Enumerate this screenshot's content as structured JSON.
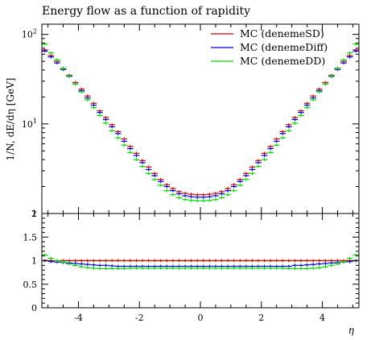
{
  "chart_data": [
    {
      "type": "line",
      "title": "Energy flow as a function of rapidity",
      "ylabel": "1/N, dE/dη [GeV]",
      "xlabel": "",
      "ylog": true,
      "xlim": [
        -5.2,
        5.2
      ],
      "ylim": [
        1,
        130
      ],
      "x_ticks": [
        "-4",
        "-2",
        "0",
        "2",
        "4"
      ],
      "y_ticks": [
        {
          "value": 1,
          "base": "1",
          "exp": ""
        },
        {
          "value": 10,
          "base": "10",
          "exp": "1"
        },
        {
          "value": 100,
          "base": "10",
          "exp": "2"
        }
      ],
      "legend_position": "top-right",
      "x": [
        -5.1,
        -4.9,
        -4.7,
        -4.5,
        -4.3,
        -4.1,
        -3.9,
        -3.7,
        -3.5,
        -3.3,
        -3.1,
        -2.9,
        -2.7,
        -2.5,
        -2.3,
        -2.1,
        -1.9,
        -1.7,
        -1.5,
        -1.3,
        -1.1,
        -0.9,
        -0.7,
        -0.5,
        -0.3,
        -0.1,
        0.1,
        0.3,
        0.5,
        0.7,
        0.9,
        1.1,
        1.3,
        1.5,
        1.7,
        1.9,
        2.1,
        2.3,
        2.5,
        2.7,
        2.9,
        3.1,
        3.3,
        3.5,
        3.7,
        3.9,
        4.1,
        4.3,
        4.5,
        4.7,
        4.9,
        5.1
      ],
      "series": [
        {
          "name": "MC (denemeSD)",
          "color": "#cc0000",
          "values": [
            67,
            58,
            50,
            42,
            35,
            29,
            24.5,
            20.5,
            17,
            14,
            11.8,
            9.8,
            8.2,
            6.8,
            5.6,
            4.7,
            3.9,
            3.3,
            2.8,
            2.4,
            2.1,
            1.9,
            1.75,
            1.68,
            1.64,
            1.62,
            1.62,
            1.64,
            1.68,
            1.75,
            1.9,
            2.1,
            2.4,
            2.8,
            3.3,
            3.9,
            4.7,
            5.6,
            6.8,
            8.2,
            9.8,
            11.8,
            14,
            17,
            20.5,
            24.5,
            29,
            35,
            42,
            50,
            58,
            67
          ]
        },
        {
          "name": "MC (denemeDiff)",
          "color": "#0000dd",
          "values": [
            65,
            56,
            48,
            40.5,
            34,
            28,
            23.5,
            19.5,
            16.2,
            13.4,
            11.2,
            9.3,
            7.8,
            6.4,
            5.3,
            4.45,
            3.7,
            3.1,
            2.65,
            2.28,
            2.0,
            1.8,
            1.66,
            1.58,
            1.54,
            1.52,
            1.52,
            1.54,
            1.58,
            1.66,
            1.8,
            2.0,
            2.28,
            2.65,
            3.1,
            3.7,
            4.45,
            5.3,
            6.4,
            7.8,
            9.3,
            11.2,
            13.4,
            16.2,
            19.5,
            23.5,
            28,
            34,
            40.5,
            48,
            56,
            65
          ]
        },
        {
          "name": "MC (denemeDD)",
          "color": "#00dd00",
          "values": [
            78,
            62,
            52,
            42,
            34.5,
            28,
            22.8,
            18.6,
            15.2,
            12.4,
            10.2,
            8.4,
            7.0,
            5.8,
            4.8,
            4.0,
            3.35,
            2.8,
            2.4,
            2.07,
            1.8,
            1.62,
            1.5,
            1.43,
            1.4,
            1.39,
            1.39,
            1.4,
            1.43,
            1.5,
            1.62,
            1.8,
            2.07,
            2.4,
            2.8,
            3.35,
            4.0,
            4.8,
            5.8,
            7.0,
            8.4,
            10.2,
            12.4,
            15.2,
            18.6,
            22.8,
            28,
            34.5,
            42,
            52,
            62,
            78
          ]
        }
      ]
    },
    {
      "type": "line",
      "title": "",
      "xlabel": "η",
      "ylabel": "",
      "ylog": false,
      "xlim": [
        -5.2,
        5.2
      ],
      "ylim": [
        0,
        2
      ],
      "y_ticks": [
        "0",
        "0.5",
        "1",
        "1.5",
        "2"
      ],
      "x": [
        -5.1,
        -4.9,
        -4.7,
        -4.5,
        -4.3,
        -4.1,
        -3.9,
        -3.7,
        -3.5,
        -3.3,
        -3.1,
        -2.9,
        -2.7,
        -2.5,
        -2.3,
        -2.1,
        -1.9,
        -1.7,
        -1.5,
        -1.3,
        -1.1,
        -0.9,
        -0.7,
        -0.5,
        -0.3,
        -0.1,
        0.1,
        0.3,
        0.5,
        0.7,
        0.9,
        1.1,
        1.3,
        1.5,
        1.7,
        1.9,
        2.1,
        2.3,
        2.5,
        2.7,
        2.9,
        3.1,
        3.3,
        3.5,
        3.7,
        3.9,
        4.1,
        4.3,
        4.5,
        4.7,
        4.9,
        5.1
      ],
      "series": [
        {
          "name": "MC (denemeSD)",
          "color": "#cc0000",
          "values": [
            1,
            1,
            1,
            1,
            1,
            1,
            1,
            1,
            1,
            1,
            1,
            1,
            1,
            1,
            1,
            1,
            1,
            1,
            1,
            1,
            1,
            1,
            1,
            1,
            1,
            1,
            1,
            1,
            1,
            1,
            1,
            1,
            1,
            1,
            1,
            1,
            1,
            1,
            1,
            1,
            1,
            1,
            1,
            1,
            1,
            1,
            1,
            1,
            1,
            1,
            1,
            1
          ]
        },
        {
          "name": "MC (denemeDiff)",
          "color": "#0000dd",
          "values": [
            1.0,
            0.98,
            0.97,
            0.96,
            0.95,
            0.94,
            0.93,
            0.92,
            0.91,
            0.9,
            0.9,
            0.89,
            0.88,
            0.88,
            0.88,
            0.88,
            0.88,
            0.88,
            0.88,
            0.88,
            0.88,
            0.88,
            0.88,
            0.88,
            0.88,
            0.88,
            0.88,
            0.88,
            0.88,
            0.88,
            0.88,
            0.88,
            0.88,
            0.88,
            0.88,
            0.88,
            0.88,
            0.88,
            0.88,
            0.88,
            0.88,
            0.9,
            0.9,
            0.91,
            0.92,
            0.93,
            0.94,
            0.95,
            0.96,
            0.97,
            0.98,
            1.0
          ]
        },
        {
          "name": "MC (denemeDD)",
          "color": "#00dd00",
          "values": [
            1.12,
            1.05,
            1.0,
            0.97,
            0.93,
            0.9,
            0.87,
            0.85,
            0.84,
            0.83,
            0.83,
            0.83,
            0.83,
            0.83,
            0.84,
            0.84,
            0.84,
            0.84,
            0.84,
            0.84,
            0.84,
            0.84,
            0.84,
            0.84,
            0.84,
            0.84,
            0.84,
            0.84,
            0.84,
            0.84,
            0.84,
            0.84,
            0.84,
            0.84,
            0.84,
            0.84,
            0.84,
            0.84,
            0.84,
            0.84,
            0.83,
            0.83,
            0.83,
            0.83,
            0.84,
            0.85,
            0.87,
            0.9,
            0.93,
            0.97,
            1.05,
            1.12
          ]
        }
      ]
    }
  ]
}
